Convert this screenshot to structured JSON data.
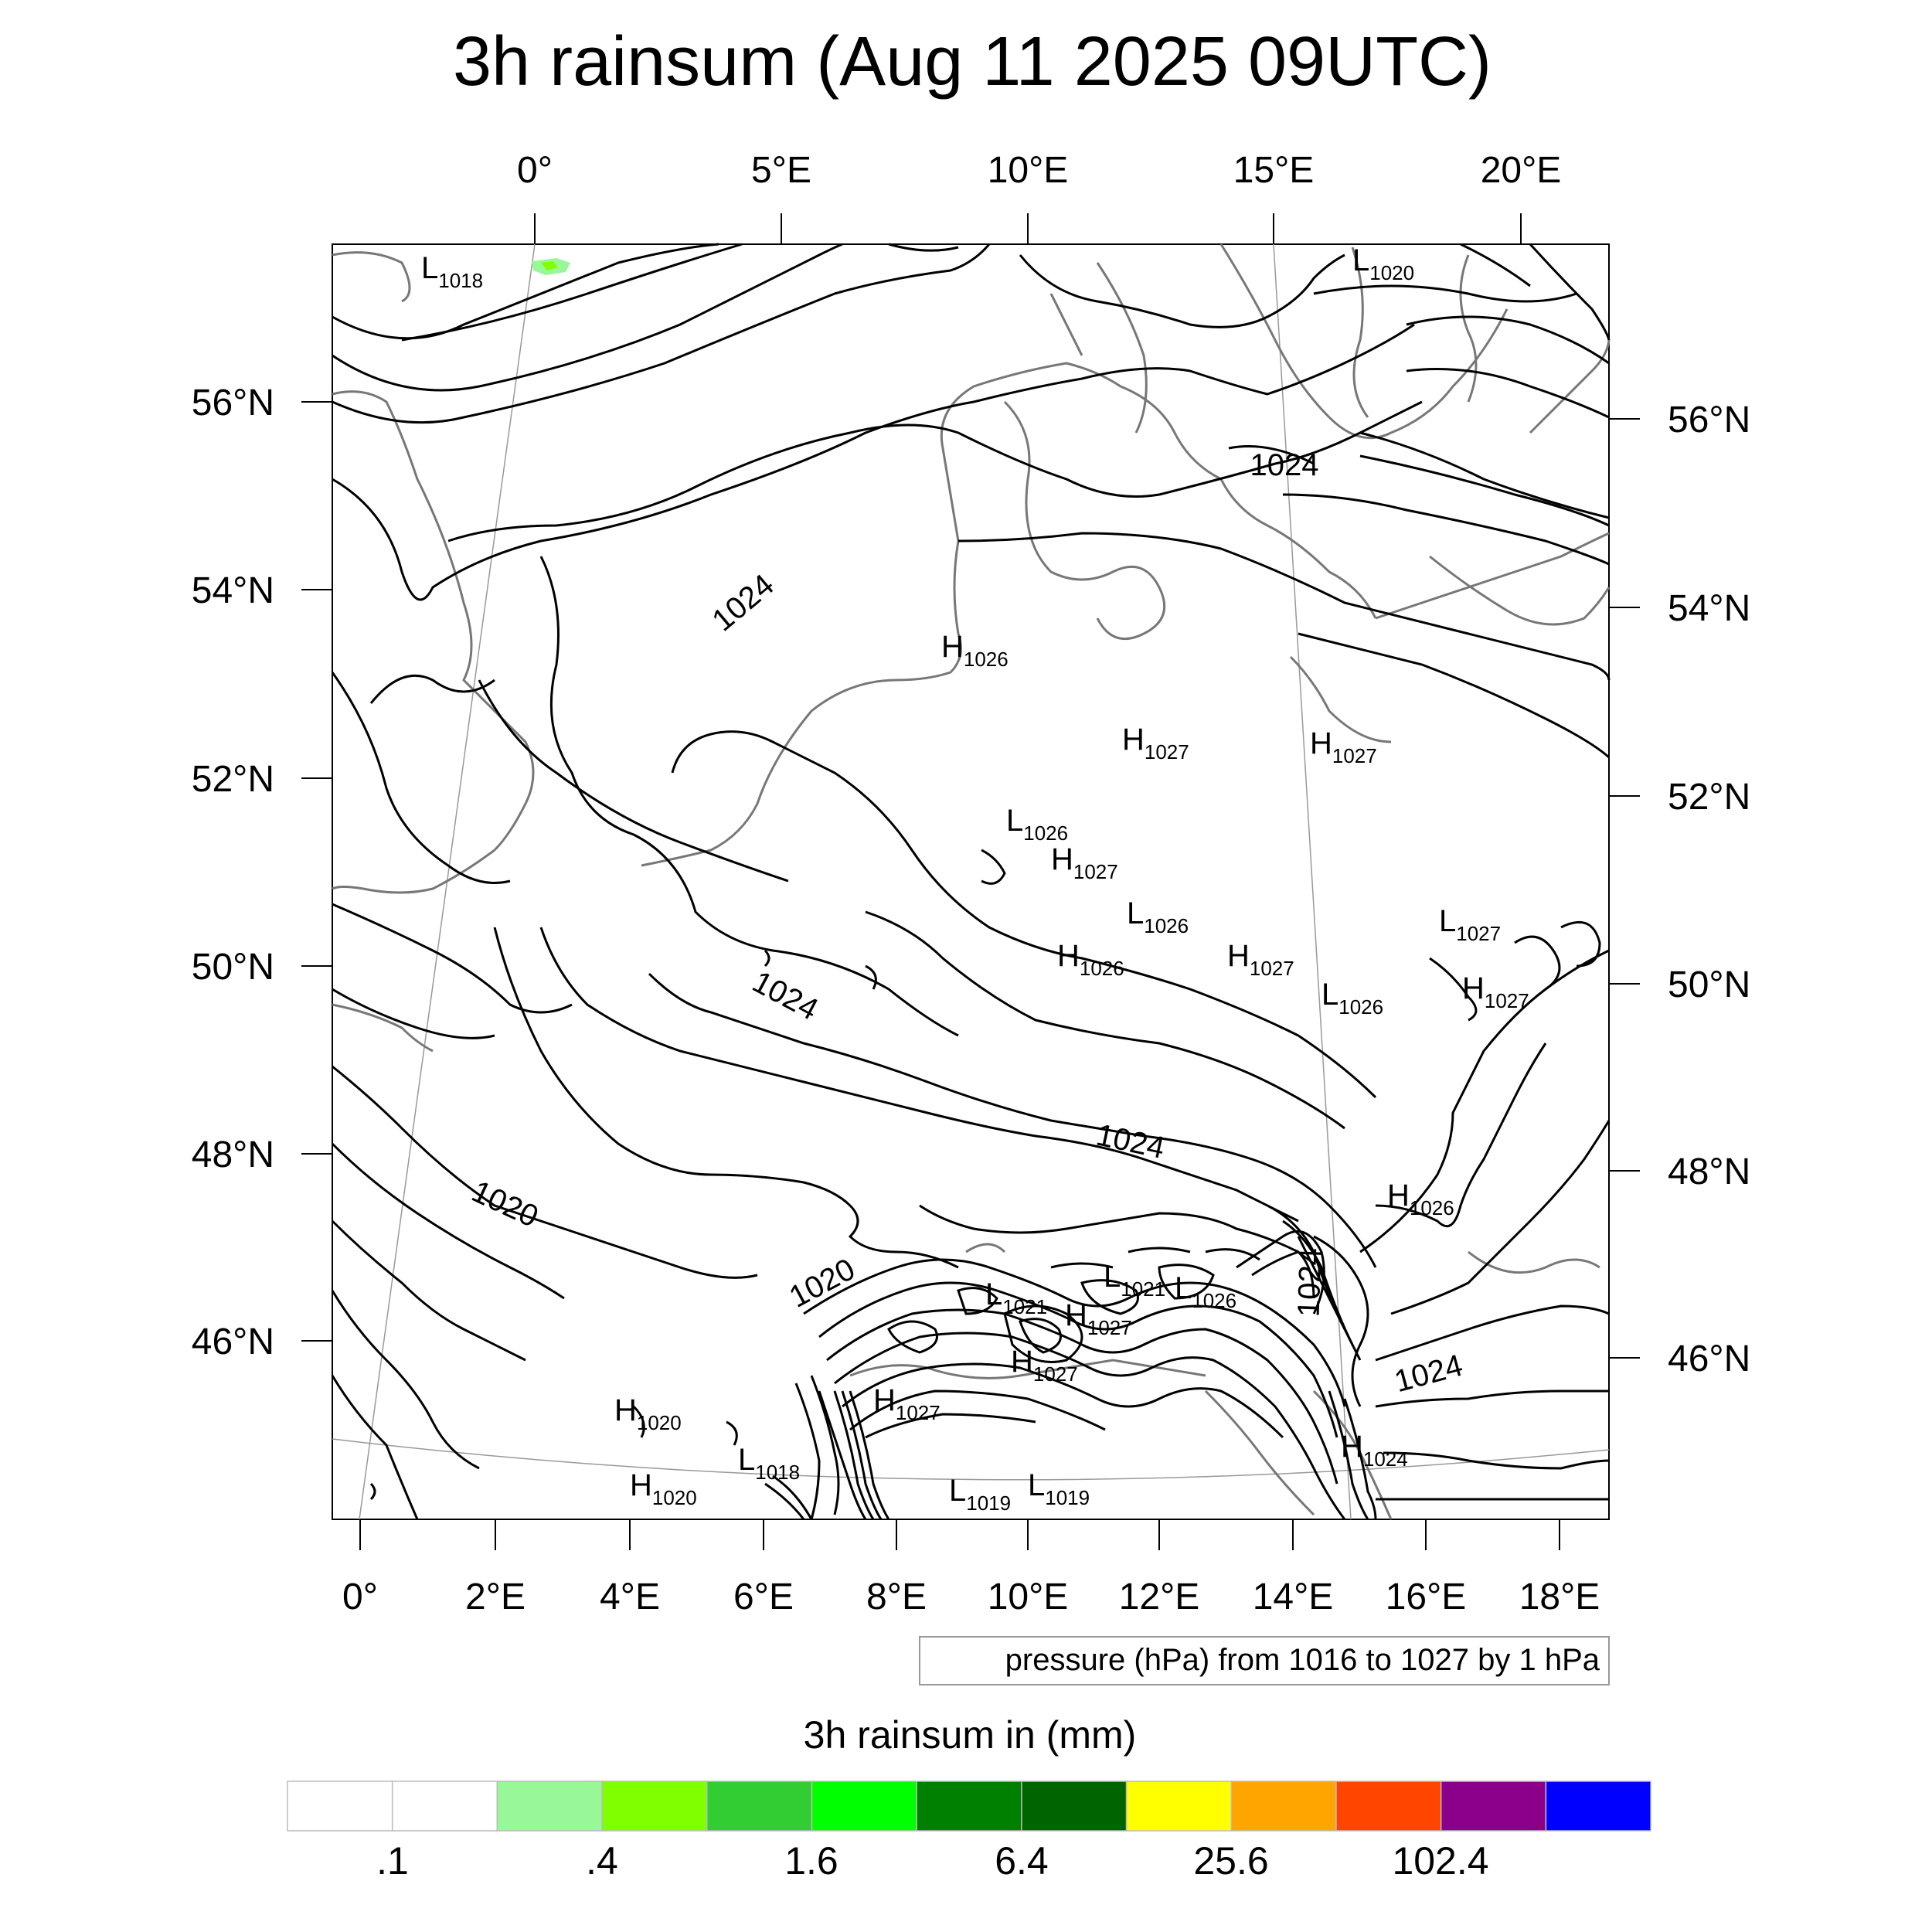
{
  "title": "3h rainsum (Aug 11 2025 09UTC)",
  "top_lon_labels": [
    "0°",
    "5°E",
    "10°E",
    "15°E",
    "20°E"
  ],
  "bottom_lon_labels": [
    "0°",
    "2°E",
    "4°E",
    "6°E",
    "8°E",
    "10°E",
    "12°E",
    "14°E",
    "16°E",
    "18°E"
  ],
  "left_lat_labels": [
    "56°N",
    "54°N",
    "52°N",
    "50°N",
    "48°N",
    "46°N"
  ],
  "right_lat_labels": [
    "56°N",
    "54°N",
    "52°N",
    "50°N",
    "48°N",
    "46°N"
  ],
  "contour_info": "pressure (hPa) from 1016 to 1027 by 1 hPa",
  "contour_labels": [
    "1024",
    "1024",
    "1024",
    "1024",
    "1024",
    "1024",
    "1020",
    "1020"
  ],
  "pressure_centers": [
    {
      "type": "L",
      "value": "1018"
    },
    {
      "type": "L",
      "value": "1020"
    },
    {
      "type": "H",
      "value": "1026"
    },
    {
      "type": "H",
      "value": "1027"
    },
    {
      "type": "H",
      "value": "1027"
    },
    {
      "type": "L",
      "value": "1026"
    },
    {
      "type": "H",
      "value": "1027"
    },
    {
      "type": "L",
      "value": "1026"
    },
    {
      "type": "L",
      "value": "1027"
    },
    {
      "type": "H",
      "value": "1026"
    },
    {
      "type": "H",
      "value": "1027"
    },
    {
      "type": "H",
      "value": "1027"
    },
    {
      "type": "L",
      "value": "1026"
    },
    {
      "type": "H",
      "value": "1026"
    },
    {
      "type": "L",
      "value": "1021"
    },
    {
      "type": "L",
      "value": "1021"
    },
    {
      "type": "L",
      "value": "1026"
    },
    {
      "type": "H",
      "value": "1027"
    },
    {
      "type": "H",
      "value": "1027"
    },
    {
      "type": "H",
      "value": "1020"
    },
    {
      "type": "H",
      "value": "1027"
    },
    {
      "type": "L",
      "value": "1018"
    },
    {
      "type": "H",
      "value": "1020"
    },
    {
      "type": "L",
      "value": "1019"
    },
    {
      "type": "L",
      "value": "1019"
    },
    {
      "type": "H",
      "value": "1024"
    }
  ],
  "colorbar": {
    "title": "3h rainsum in (mm)",
    "colors": [
      "#ffffff",
      "#ffffff",
      "#98f898",
      "#80ff00",
      "#32cd32",
      "#00ff00",
      "#008000",
      "#006400",
      "#ffff00",
      "#ffa500",
      "#ff4500",
      "#8b008b",
      "#0000ff"
    ],
    "tick_labels": [
      ".1",
      ".4",
      "1.6",
      "6.4",
      "25.6",
      "102.4"
    ]
  }
}
